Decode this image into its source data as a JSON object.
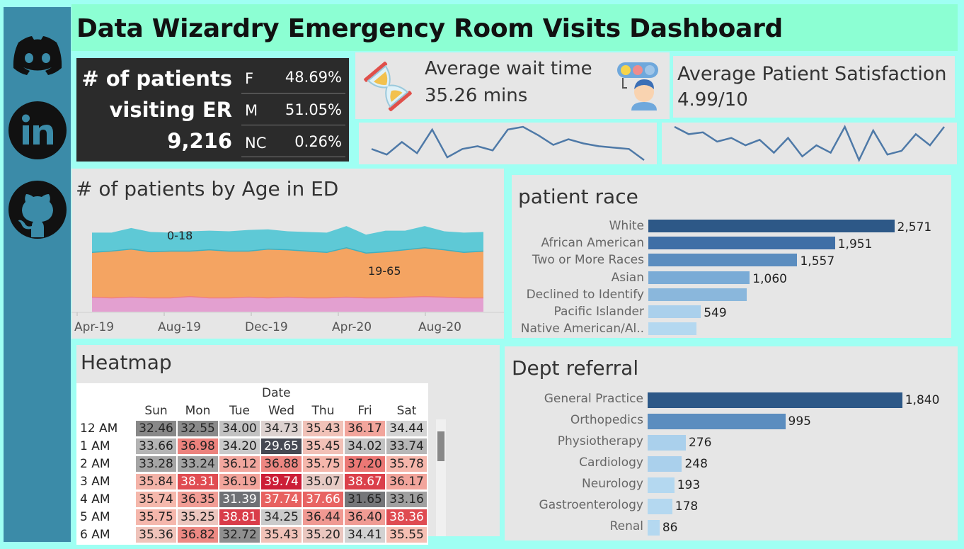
{
  "title": "Data Wizardry Emergency Room Visits Dashboard",
  "sidebar": {
    "icons": [
      "discord-icon",
      "linkedin-icon",
      "github-icon"
    ]
  },
  "patients": {
    "label_line1": "# of patients",
    "label_line2": "visiting ER",
    "total": "9,216",
    "genders": [
      {
        "code": "F",
        "pct": "48.69%"
      },
      {
        "code": "M",
        "pct": "51.05%"
      },
      {
        "code": "NC",
        "pct": "0.26%"
      }
    ]
  },
  "wait": {
    "label": "Average wait time",
    "value": "35.26 mins"
  },
  "satisfaction": {
    "label": "Average Patient Satisfaction",
    "value": "4.99/10"
  },
  "spark_wait": {
    "values": [
      34.8,
      34.4,
      35.3,
      34.5,
      36.2,
      34.2,
      34.8,
      35.0,
      34.7,
      36.2,
      36.4,
      35.8,
      35.1,
      35.5,
      35.2,
      35.0,
      34.9,
      34.8,
      34.0
    ]
  },
  "spark_sat": {
    "values": [
      5.3,
      5.1,
      5.15,
      4.9,
      5.0,
      4.8,
      4.95,
      4.6,
      5.0,
      4.5,
      4.8,
      4.6,
      5.3,
      4.4,
      5.2,
      4.55,
      4.65,
      5.1,
      4.8,
      5.3
    ]
  },
  "age_chart": {
    "title": "# of patients by Age in ED",
    "x_labels": [
      "Apr-19",
      "Aug-19",
      "Dec-19",
      "Apr-20",
      "Aug-20"
    ],
    "series_labels": [
      "0-18",
      "19-65"
    ],
    "colors": {
      "0-18": "#5ec9d6",
      "19-65": "#f4a462",
      "65+": "#e3a0d0",
      "line": "#f08080"
    },
    "band_65plus": [
      22,
      21,
      22,
      21,
      21,
      23,
      21,
      21,
      22,
      21,
      22,
      21,
      21,
      22,
      21,
      21,
      22,
      23,
      22,
      21,
      21
    ],
    "band_19_65": [
      68,
      71,
      73,
      70,
      71,
      69,
      73,
      71,
      70,
      74,
      72,
      71,
      69,
      75,
      68,
      70,
      72,
      74,
      72,
      69,
      71
    ],
    "band_0_18": [
      30,
      28,
      32,
      30,
      28,
      30,
      29,
      30,
      32,
      30,
      28,
      29,
      30,
      33,
      28,
      32,
      29,
      33,
      28,
      30,
      29
    ]
  },
  "race_chart": {
    "title": "patient race",
    "max": 2700,
    "items": [
      {
        "label": "White",
        "value": 2571,
        "display": "2,571",
        "color": "#2d5887"
      },
      {
        "label": "African American",
        "value": 1951,
        "display": "1,951",
        "color": "#3f6fa6"
      },
      {
        "label": "Two or More Races",
        "value": 1557,
        "display": "1,557",
        "color": "#5b8dbf"
      },
      {
        "label": "Asian",
        "value": 1060,
        "display": "1,060",
        "color": "#7aabd6"
      },
      {
        "label": "Declined to Identify",
        "value": 1030,
        "display": "",
        "color": "#8ab7dc"
      },
      {
        "label": "Pacific Islander",
        "value": 549,
        "display": "549",
        "color": "#aad0ec"
      },
      {
        "label": "Native American/Al..",
        "value": 500,
        "display": "",
        "color": "#b4d8f0"
      }
    ]
  },
  "dept_chart": {
    "title": "Dept referral",
    "max": 2000,
    "items": [
      {
        "label": "General Practice",
        "value": 1840,
        "display": "1,840",
        "color": "#2d5887"
      },
      {
        "label": "Orthopedics",
        "value": 995,
        "display": "995",
        "color": "#5b8dbf"
      },
      {
        "label": "Physiotherapy",
        "value": 276,
        "display": "276",
        "color": "#aad0ec"
      },
      {
        "label": "Cardiology",
        "value": 248,
        "display": "248",
        "color": "#aad0ec"
      },
      {
        "label": "Neurology",
        "value": 193,
        "display": "193",
        "color": "#b4d8f0"
      },
      {
        "label": "Gastroenterology",
        "value": 178,
        "display": "178",
        "color": "#b4d8f0"
      },
      {
        "label": "Renal",
        "value": 86,
        "display": "86",
        "color": "#b4d8f0"
      }
    ]
  },
  "heatmap": {
    "title": "Heatmap",
    "column_group": "Date",
    "days": [
      "Sun",
      "Mon",
      "Tue",
      "Wed",
      "Thu",
      "Fri",
      "Sat"
    ],
    "rows": [
      {
        "hour": "12 AM",
        "values": [
          "32.46",
          "32.55",
          "34.00",
          "34.73",
          "35.43",
          "36.17",
          "34.44"
        ]
      },
      {
        "hour": "1 AM",
        "values": [
          "33.66",
          "36.98",
          "34.20",
          "29.65",
          "35.45",
          "34.02",
          "33.74"
        ]
      },
      {
        "hour": "2 AM",
        "values": [
          "33.28",
          "33.24",
          "36.12",
          "36.88",
          "35.75",
          "37.20",
          "35.78"
        ]
      },
      {
        "hour": "3 AM",
        "values": [
          "35.84",
          "38.31",
          "36.19",
          "39.74",
          "35.07",
          "38.67",
          "36.17"
        ]
      },
      {
        "hour": "4 AM",
        "values": [
          "35.74",
          "36.35",
          "31.39",
          "37.74",
          "37.66",
          "31.65",
          "33.16"
        ]
      },
      {
        "hour": "5 AM",
        "values": [
          "35.75",
          "35.25",
          "38.81",
          "34.25",
          "36.44",
          "36.40",
          "38.36"
        ]
      },
      {
        "hour": "6 AM",
        "values": [
          "35.36",
          "36.82",
          "32.72",
          "35.43",
          "35.20",
          "34.41",
          "35.55"
        ]
      }
    ]
  }
}
